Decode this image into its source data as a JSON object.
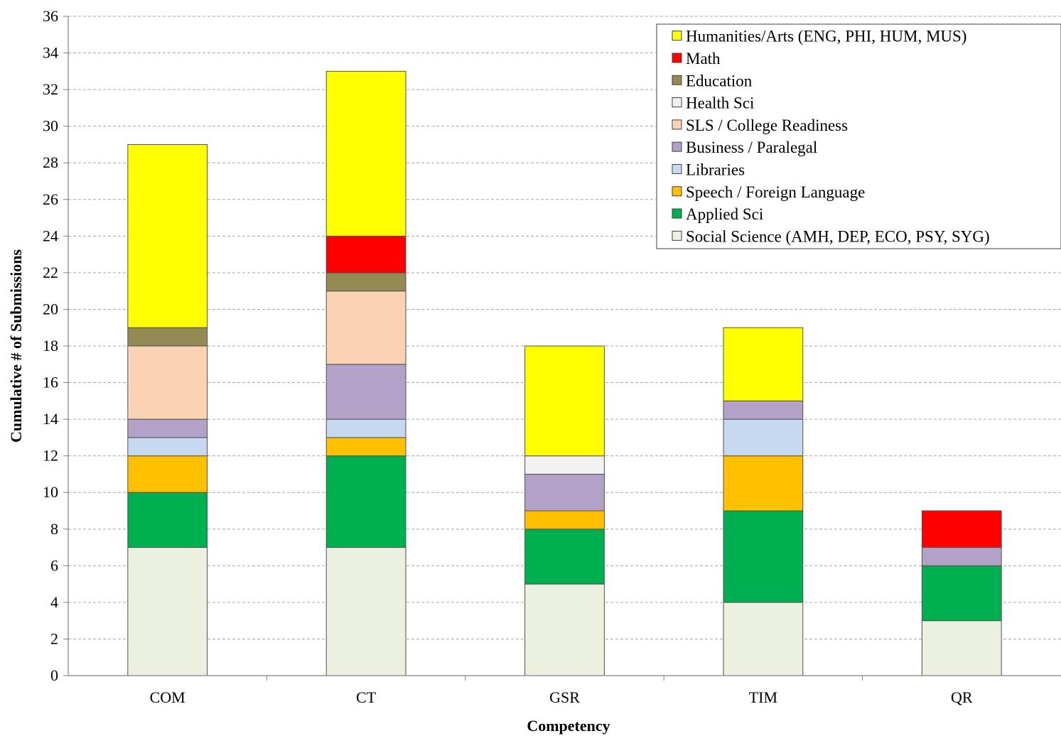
{
  "chart_data": {
    "type": "bar",
    "stacked": true,
    "title": "",
    "xlabel": "Competency",
    "ylabel": "Cumulative # of Submissions",
    "ylim": [
      0,
      36
    ],
    "ytick_step": 2,
    "grid": true,
    "legend_position": "top-right",
    "categories": [
      "COM",
      "CT",
      "GSR",
      "TIM",
      "QR"
    ],
    "series": [
      {
        "name": "Social Science (AMH, DEP, ECO, PSY, SYG)",
        "color": "#EBF1DE",
        "values": [
          7,
          7,
          5,
          4,
          3
        ]
      },
      {
        "name": "Applied Sci",
        "color": "#00B050",
        "values": [
          3,
          5,
          3,
          5,
          3
        ]
      },
      {
        "name": "Speech / Foreign Language",
        "color": "#FFC000",
        "values": [
          2,
          1,
          1,
          3,
          0
        ]
      },
      {
        "name": "Libraries",
        "color": "#C6D9F1",
        "values": [
          1,
          1,
          0,
          2,
          0
        ]
      },
      {
        "name": "Business / Paralegal",
        "color": "#B3A2C7",
        "values": [
          1,
          3,
          2,
          1,
          1
        ]
      },
      {
        "name": "SLS / College Readiness",
        "color": "#FAD3B4",
        "values": [
          4,
          4,
          0,
          0,
          0
        ]
      },
      {
        "name": "Health Sci",
        "color": "#F2F2F2",
        "values": [
          0,
          0,
          1,
          0,
          0
        ]
      },
      {
        "name": "Education",
        "color": "#948A54",
        "values": [
          1,
          1,
          0,
          0,
          0
        ]
      },
      {
        "name": "Math",
        "color": "#FF0000",
        "values": [
          0,
          2,
          0,
          0,
          2
        ]
      },
      {
        "name": "Humanities/Arts (ENG, PHI, HUM, MUS)",
        "color": "#FFFF00",
        "values": [
          10,
          9,
          6,
          4,
          0
        ]
      }
    ]
  }
}
